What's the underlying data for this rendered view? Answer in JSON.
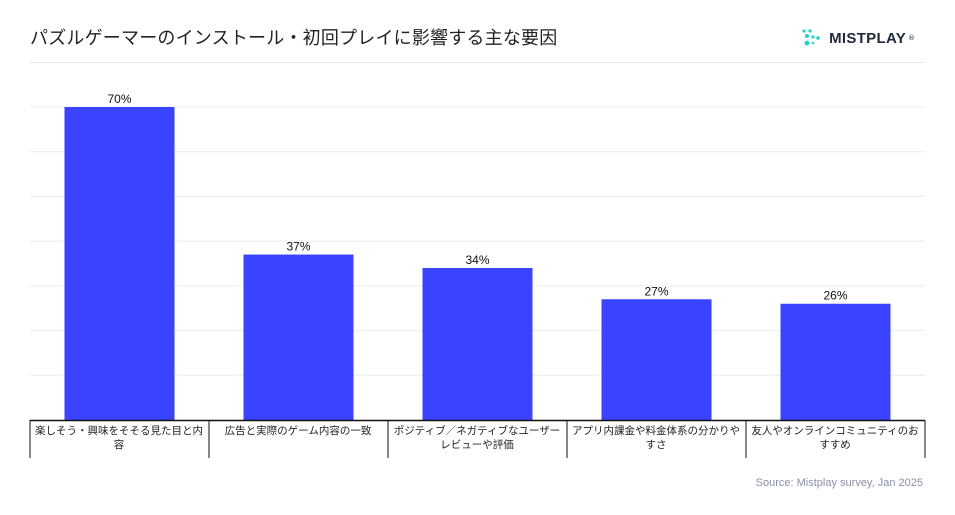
{
  "title": "パズルゲーマーのインストール・初回プレイに影響する主な要因",
  "brand": {
    "name": "MISTPLAY",
    "mark": "®",
    "accent": "#22d3c5"
  },
  "source": "Source: Mistplay survey, Jan 2025",
  "chart_data": {
    "type": "bar",
    "categories": [
      "楽しそう・興味をそそる見た目と内容",
      "広告と実際のゲーム内容の一致",
      "ポジティブ／ネガティブなユーザーレビューや評価",
      "アプリ内課金や料金体系の分かりやすさ",
      "友人やオンラインコミュニティのおすすめ"
    ],
    "values": [
      70,
      37,
      34,
      27,
      26
    ],
    "data_labels": [
      "70%",
      "37%",
      "34%",
      "27%",
      "26%"
    ],
    "ylim": [
      0,
      70
    ],
    "grid": true,
    "bar_color": "#3a43ff",
    "title": "パズルゲーマーのインストール・初回プレイに影響する主な要因",
    "xlabel": "",
    "ylabel": ""
  }
}
